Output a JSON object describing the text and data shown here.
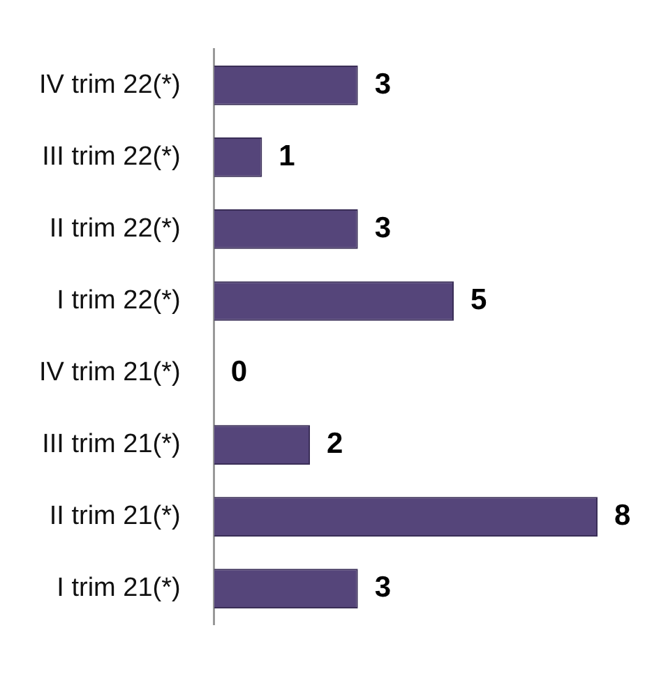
{
  "chart_data": {
    "type": "bar",
    "orientation": "horizontal",
    "categories": [
      "IV trim 22(*)",
      "III trim 22(*)",
      "II trim 22(*)",
      "I trim 22(*)",
      "IV trim 21(*)",
      "III trim 21(*)",
      "II trim 21(*)",
      "I trim 21(*)"
    ],
    "values": [
      3,
      1,
      3,
      5,
      0,
      2,
      8,
      3
    ],
    "color": "#55457a",
    "data_labels": true,
    "legend": false
  }
}
